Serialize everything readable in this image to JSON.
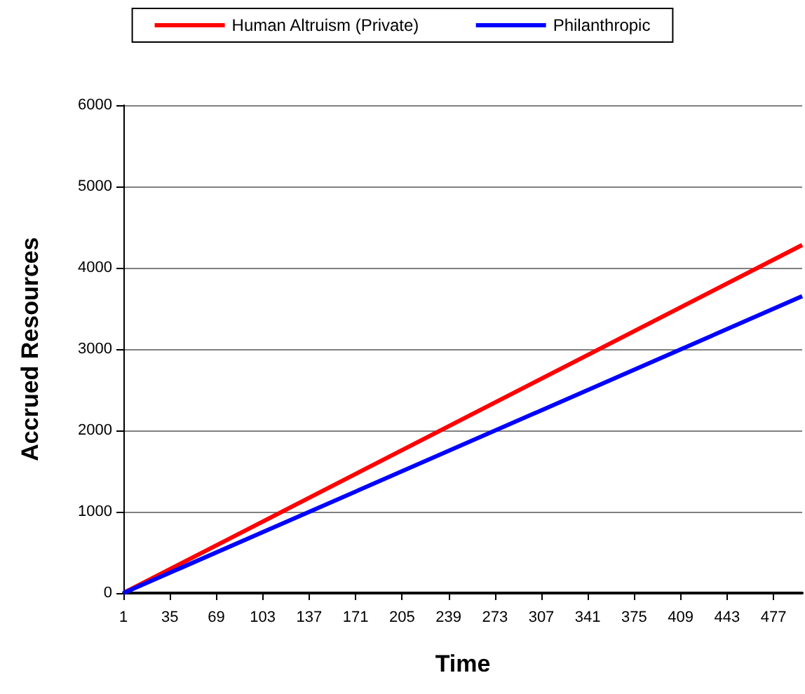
{
  "chart_data": {
    "type": "line",
    "xlabel": "Time",
    "ylabel": "Accrued Resources",
    "xlim": [
      1,
      498
    ],
    "xticks": [
      1,
      35,
      69,
      103,
      137,
      171,
      205,
      239,
      273,
      307,
      341,
      375,
      409,
      443,
      477
    ],
    "ylim": [
      0,
      6000
    ],
    "yticks": [
      0,
      1000,
      2000,
      3000,
      4000,
      5000,
      6000
    ],
    "grid": "y",
    "legend": "top",
    "marker": "none",
    "line_style": "solid",
    "x": [
      1,
      498
    ],
    "series": [
      {
        "name": "Human Altruism (Private)",
        "color": "#ff0000",
        "values": [
          0,
          4280
        ]
      },
      {
        "name": "Philanthropic",
        "color": "#0000ff",
        "values": [
          0,
          3650
        ]
      }
    ]
  }
}
